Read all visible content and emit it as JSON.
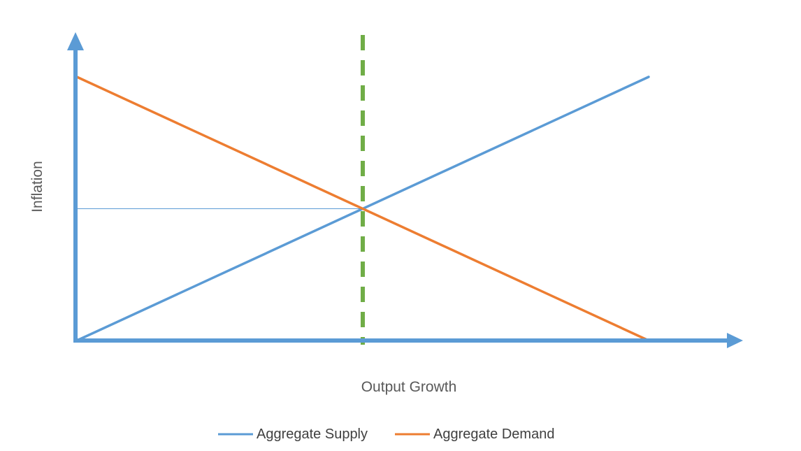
{
  "chart_data": {
    "type": "line",
    "title": "",
    "xlabel": "Output Growth",
    "ylabel": "Inflation",
    "xlim": [
      0,
      10
    ],
    "ylim": [
      0,
      10
    ],
    "grid": false,
    "legend_position": "bottom",
    "series": [
      {
        "name": "Aggregate Supply",
        "color": "#5b9bd5",
        "x": [
          0,
          10
        ],
        "y": [
          0,
          10
        ]
      },
      {
        "name": "Aggregate Demand",
        "color": "#ed7d31",
        "x": [
          0,
          10
        ],
        "y": [
          10,
          0
        ]
      }
    ],
    "reference_lines": [
      {
        "kind": "vertical",
        "x": 5,
        "style": "dashed",
        "color": "#70ad47"
      },
      {
        "kind": "horizontal",
        "y": 5,
        "x_from": 0,
        "x_to": 5,
        "style": "thin",
        "color": "#5b9bd5"
      }
    ],
    "axis_color": "#5b9bd5"
  }
}
